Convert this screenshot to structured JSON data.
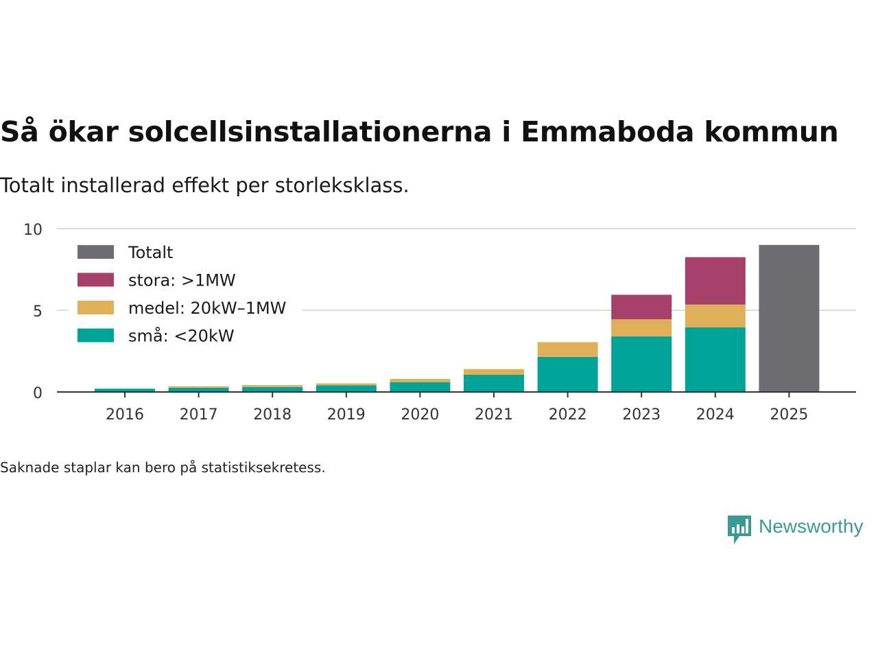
{
  "title": "Så ökar solcellsinstallationerna i Emmaboda kommun",
  "subtitle": "Totalt installerad effekt per storleksklass.",
  "note": "Saknade staplar kan bero på statistiksekretess.",
  "brand": "Newsworthy",
  "chart_data": {
    "type": "bar",
    "stacked": true,
    "categories": [
      "2016",
      "2017",
      "2018",
      "2019",
      "2020",
      "2021",
      "2022",
      "2023",
      "2024",
      "2025"
    ],
    "series": [
      {
        "name": "små: <20kW",
        "color": "#00a397",
        "values": [
          0.2,
          0.25,
          0.3,
          0.4,
          0.6,
          1.05,
          2.15,
          3.4,
          3.95,
          0
        ]
      },
      {
        "name": "medel: 20kW–1MW",
        "color": "#dfb05a",
        "values": [
          0,
          0.1,
          0.12,
          0.13,
          0.2,
          0.35,
          0.9,
          1.05,
          1.4,
          0
        ]
      },
      {
        "name": "stora: >1MW",
        "color": "#a64069",
        "values": [
          0,
          0,
          0,
          0,
          0,
          0,
          0,
          1.5,
          2.9,
          0
        ]
      },
      {
        "name": "Totalt",
        "color": "#6e6d72",
        "values": [
          0,
          0,
          0,
          0,
          0,
          0,
          0,
          0,
          0,
          9.0
        ]
      }
    ],
    "legend": {
      "order": [
        "Totalt",
        "stora: >1MW",
        "medel: 20kW–1MW",
        "små: <20kW"
      ],
      "placement": "top-left"
    },
    "yticks": [
      0,
      5,
      10
    ],
    "ylim": [
      0,
      10
    ],
    "xlabel": "",
    "ylabel": "",
    "grid": true
  }
}
